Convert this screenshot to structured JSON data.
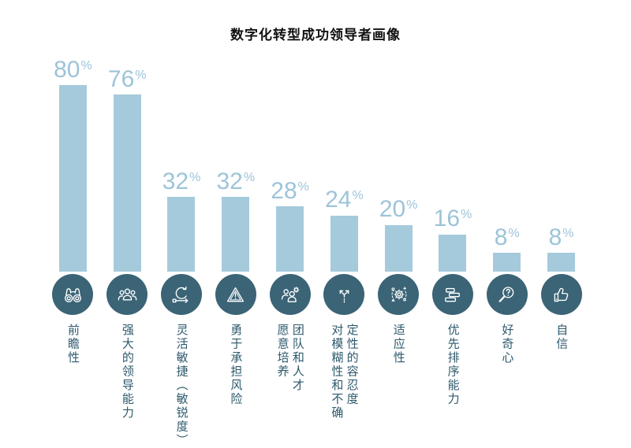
{
  "title": "数字化转型成功领导者画像",
  "colors": {
    "bar": "#a5cadc",
    "percent_text": "#9dc4d9",
    "icon_circle": "#3b6476",
    "label_text": "#2d596c",
    "title_text": "#111111"
  },
  "chart_data": {
    "type": "bar",
    "title": "数字化转型成功领导者画像",
    "unit": "%",
    "ylim": [
      0,
      100
    ],
    "grid": false,
    "legend": "none",
    "categories": [
      "前瞻性",
      "强大的领导能力",
      "灵活敏捷（敏锐度）",
      "勇于承担风险",
      "愿意培养团队和人才",
      "对模糊性和不确定性的容忍度",
      "适应性",
      "优先排序能力",
      "好奇心",
      "自信"
    ],
    "values": [
      80,
      76,
      32,
      32,
      28,
      24,
      20,
      16,
      8,
      8
    ],
    "pixels_per_percent": 2.96,
    "bars": [
      {
        "value": 80,
        "label_columns": [
          "前瞻性"
        ],
        "icon": "binoculars-icon"
      },
      {
        "value": 76,
        "label_columns": [
          "强大的领导能力"
        ],
        "icon": "team-icon"
      },
      {
        "value": 32,
        "label_columns": [
          "灵活敏捷（敏锐度）"
        ],
        "icon": "agile-loop-icon"
      },
      {
        "value": 32,
        "label_columns": [
          "勇于承担风险"
        ],
        "icon": "warning-triangle-icon"
      },
      {
        "value": 28,
        "label_columns": [
          "愿意培养",
          "团队和人才"
        ],
        "icon": "talent-gear-icon"
      },
      {
        "value": 24,
        "label_columns": [
          "对模糊性和不确",
          "定性的容忍度"
        ],
        "icon": "fork-arrows-icon"
      },
      {
        "value": 20,
        "label_columns": [
          "适应性"
        ],
        "icon": "adapt-gear-icon"
      },
      {
        "value": 16,
        "label_columns": [
          "优先排序能力"
        ],
        "icon": "priority-list-icon"
      },
      {
        "value": 8,
        "label_columns": [
          "好奇心"
        ],
        "icon": "magnifier-question-icon"
      },
      {
        "value": 8,
        "label_columns": [
          "自信"
        ],
        "icon": "thumbs-up-icon"
      }
    ]
  }
}
